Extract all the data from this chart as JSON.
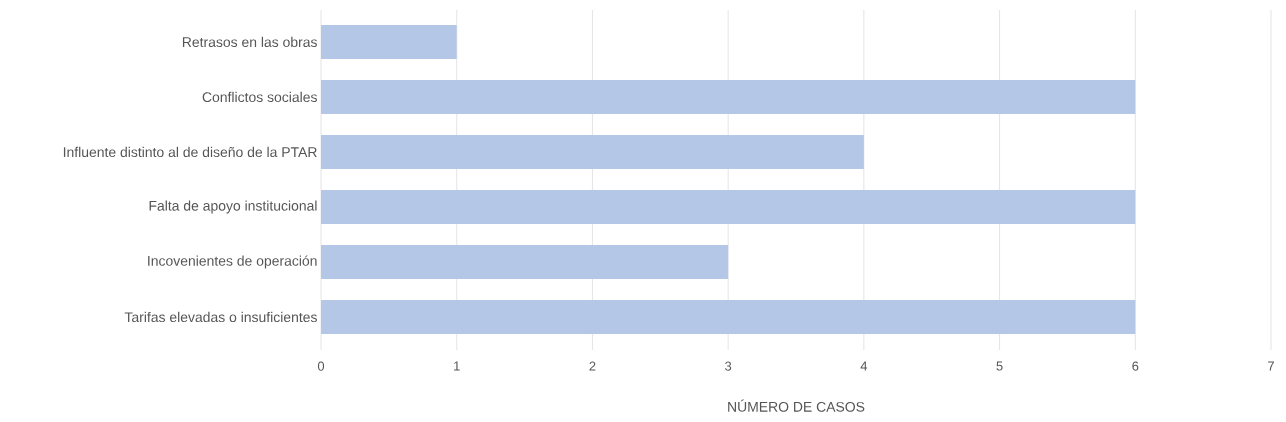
{
  "chart_data": {
    "type": "bar",
    "orientation": "horizontal",
    "xlabel": "NÚMERO DE CASOS",
    "categories": [
      "Retrasos en las obras",
      "Conflictos sociales",
      "Influente distinto al de diseño de la PTAR",
      "Falta de apoyo institucional",
      "Incovenientes de operación",
      "Tarifas elevadas o insuficientes"
    ],
    "values": [
      1,
      6,
      4,
      6,
      3,
      6
    ],
    "color": "#b4c7e7",
    "xlim": [
      0,
      7
    ],
    "xticks": [
      0,
      1,
      2,
      3,
      4,
      5,
      6,
      7
    ],
    "grid": "x"
  }
}
